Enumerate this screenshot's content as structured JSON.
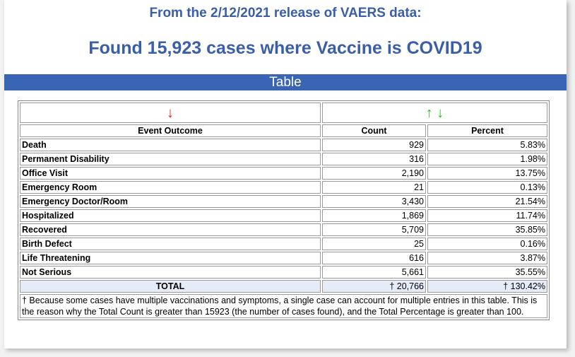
{
  "header": {
    "release_line": "From the 2/12/2021 release of VAERS data:",
    "found_line": "Found 15,923 cases where Vaccine is COVID19",
    "bar_label": "Table"
  },
  "table": {
    "sort_arrows": {
      "outcome": "↓",
      "count_up": "↑",
      "count_down": "↓"
    },
    "columns": [
      "Event Outcome",
      "Count",
      "Percent"
    ],
    "rows": [
      {
        "outcome": "Death",
        "count": "929",
        "percent": "5.83%"
      },
      {
        "outcome": "Permanent Disability",
        "count": "316",
        "percent": "1.98%"
      },
      {
        "outcome": "Office Visit",
        "count": "2,190",
        "percent": "13.75%"
      },
      {
        "outcome": "Emergency Room",
        "count": "21",
        "percent": "0.13%"
      },
      {
        "outcome": "Emergency Doctor/Room",
        "count": "3,430",
        "percent": "21.54%"
      },
      {
        "outcome": "Hospitalized",
        "count": "1,869",
        "percent": "11.74%"
      },
      {
        "outcome": "Recovered",
        "count": "5,709",
        "percent": "35.85%"
      },
      {
        "outcome": "Birth Defect",
        "count": "25",
        "percent": "0.16%"
      },
      {
        "outcome": "Life Threatening",
        "count": "616",
        "percent": "3.87%"
      },
      {
        "outcome": "Not Serious",
        "count": "5,661",
        "percent": "35.55%"
      }
    ],
    "total": {
      "label": "TOTAL",
      "count": "† 20,766",
      "percent": "† 130.42%"
    },
    "footnote": "† Because some cases have multiple vaccinations and symptoms, a single case can account for multiple entries in this table. This is the reason why the Total Count is greater than 15923 (the number of cases found), and the Total Percentage is greater than 100."
  },
  "colors": {
    "heading": "#3a5ea8",
    "bar": "#3a64b4",
    "arrow_red": "#e0201a",
    "arrow_green": "#22c022",
    "total_row": "#e6ebf8"
  }
}
